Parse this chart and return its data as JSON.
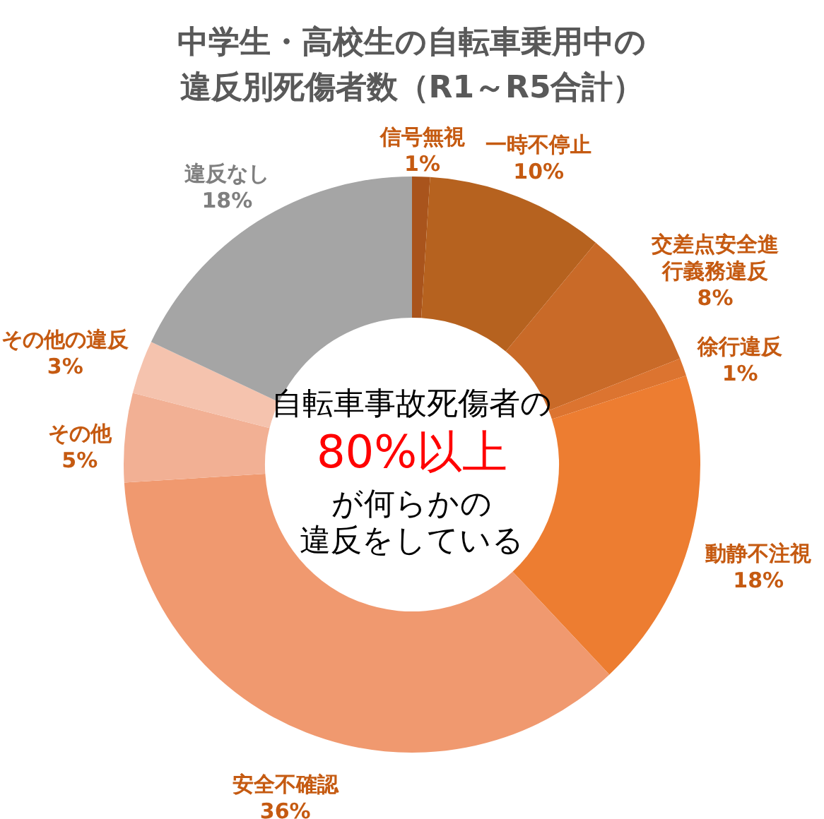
{
  "chart_data": {
    "type": "donut",
    "title": "中学生・高校生の自転車乗用中の違反別死傷者数（R1～R5合計）",
    "categories": [
      "信号無視",
      "一時不停止",
      "交差点安全進行義務違反",
      "徐行違反",
      "動静不注視",
      "安全不確認",
      "その他",
      "その他の違反",
      "違反なし"
    ],
    "values": [
      1,
      10,
      8,
      1,
      18,
      36,
      5,
      3,
      18
    ],
    "value_labels": [
      "1%",
      "10%",
      "8%",
      "1%",
      "18%",
      "36%",
      "5%",
      "3%",
      "18%"
    ],
    "colors": [
      "#a9541c",
      "#b6621f",
      "#c96a28",
      "#dc7430",
      "#ed7d31",
      "#f0996f",
      "#f2b094",
      "#f5c3ae",
      "#a5a5a5"
    ],
    "annotations": [
      "自転車事故死傷者の",
      "80%以上",
      "が何らかの",
      "違反をしている"
    ]
  }
}
